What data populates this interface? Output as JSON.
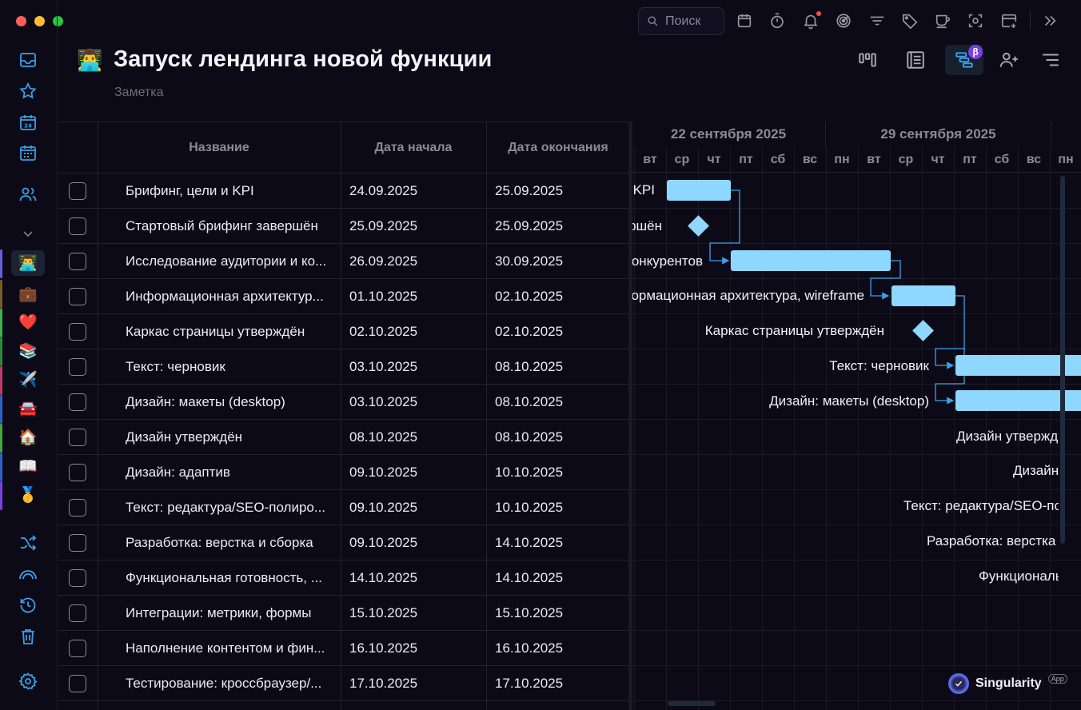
{
  "window": {
    "title": "Запуск лендинга новой функции"
  },
  "toolbar": {
    "search_placeholder": "Поиск",
    "icons": [
      "calendar-icon",
      "timer-icon",
      "bell-icon",
      "focus-icon",
      "filter-icon",
      "tag-icon",
      "coffee-icon",
      "screenshot-icon",
      "add-window-icon",
      "expand-icon"
    ]
  },
  "sidebar": {
    "nav": [
      "inbox-icon",
      "star-icon",
      "today-icon",
      "calendar-grid-icon",
      "people-icon"
    ],
    "projects": [
      {
        "emoji": "👨‍💻",
        "color": "#6b5be0",
        "active": true
      },
      {
        "emoji": "💼",
        "color": "#7a5a2a"
      },
      {
        "emoji": "❤️",
        "color": "#3bb34a"
      },
      {
        "emoji": "📚",
        "color": "#2d8a3a"
      },
      {
        "emoji": "✈️",
        "color": "#c23a6a"
      },
      {
        "emoji": "🚘",
        "color": "#2a64c8"
      },
      {
        "emoji": "🏠",
        "color": "#44a83a"
      },
      {
        "emoji": "📖",
        "color": "#2a64c8"
      },
      {
        "emoji": "🥇",
        "color": "#7a3fe4"
      }
    ],
    "bottom": [
      "shuffle-icon",
      "rainbow-icon",
      "history-icon",
      "trash-icon",
      "settings-icon"
    ]
  },
  "header": {
    "emoji": "👨‍💻",
    "title": "Запуск лендинга новой функции",
    "subtitle": "Заметка",
    "beta": "β"
  },
  "table": {
    "columns": [
      "Название",
      "Дата начала",
      "Дата окончания"
    ],
    "rows": [
      {
        "name": "Брифинг, цели и KPI",
        "start": "24.09.2025",
        "end": "25.09.2025"
      },
      {
        "name": "Стартовый брифинг завершён",
        "start": "25.09.2025",
        "end": "25.09.2025"
      },
      {
        "name": "Исследование аудитории и ко...",
        "start": "26.09.2025",
        "end": "30.09.2025"
      },
      {
        "name": "Информационная архитектур...",
        "start": "01.10.2025",
        "end": "02.10.2025"
      },
      {
        "name": "Каркас страницы утверждён",
        "start": "02.10.2025",
        "end": "02.10.2025"
      },
      {
        "name": "Текст: черновик",
        "start": "03.10.2025",
        "end": "08.10.2025"
      },
      {
        "name": "Дизайн: макеты (desktop)",
        "start": "03.10.2025",
        "end": "08.10.2025"
      },
      {
        "name": "Дизайн утверждён",
        "start": "08.10.2025",
        "end": "08.10.2025"
      },
      {
        "name": "Дизайн: адаптив",
        "start": "09.10.2025",
        "end": "10.10.2025"
      },
      {
        "name": "Текст: редактура/SEO-полиро...",
        "start": "09.10.2025",
        "end": "10.10.2025"
      },
      {
        "name": "Разработка: верстка и сборка",
        "start": "09.10.2025",
        "end": "14.10.2025"
      },
      {
        "name": "Функциональная готовность, ...",
        "start": "14.10.2025",
        "end": "14.10.2025"
      },
      {
        "name": "Интеграции: метрики, формы",
        "start": "15.10.2025",
        "end": "15.10.2025"
      },
      {
        "name": "Наполнение контентом и фин...",
        "start": "16.10.2025",
        "end": "16.10.2025"
      },
      {
        "name": "Тестирование: кроссбраузер/...",
        "start": "17.10.2025",
        "end": "17.10.2025"
      }
    ]
  },
  "gantt": {
    "weeks": [
      "22 сентября 2025",
      "29 сентября 2025"
    ],
    "days": [
      "вт",
      "ср",
      "чт",
      "пт",
      "сб",
      "вс",
      "пн",
      "вт",
      "ср",
      "чт",
      "пт",
      "сб",
      "вс",
      "пн"
    ],
    "labels": [
      "KPI",
      "Стартовый брифинг завершён",
      "Исследование аудитории и конкурентов",
      "Информационная архитектура, wireframe",
      "Каркас страницы утверждён",
      "Текст: черновик",
      "Дизайн: макеты (desktop)",
      "Дизайн утверждён",
      "Дизайн: адаптив",
      "Текст: редактура/SEO-полировка",
      "Разработка: верстка и сборка",
      "Функциональная готовность"
    ],
    "bar_color": "#8ed7ff"
  },
  "brand": {
    "name": "Singularity",
    "badge": "App"
  }
}
